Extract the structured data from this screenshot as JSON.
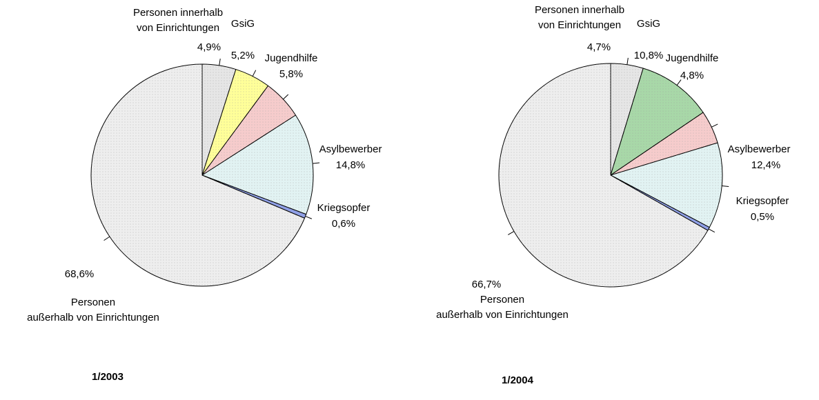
{
  "chart_data": [
    {
      "type": "pie",
      "title": "1/2003",
      "categories": [
        "Personen innerhalb\nvon Einrichtungen",
        "GsiG",
        "Jugendhilfe",
        "Asylbewerber",
        "Kriegsopfer",
        "Personen\naußerhalb von Einrichtungen"
      ],
      "values": [
        4.9,
        5.2,
        5.8,
        14.8,
        0.6,
        68.6
      ],
      "value_labels": [
        "4,9%",
        "5,2%",
        "5,8%",
        "14,8%",
        "0,6%",
        "68,6%"
      ],
      "colors": [
        "#e6e6e6",
        "#ffff99",
        "#f6cccc",
        "#e2f3f3",
        "#8fa0e8",
        "#eeeeee"
      ]
    },
    {
      "type": "pie",
      "title": "1/2004",
      "categories": [
        "Personen innerhalb\nvon Einrichtungen",
        "GsiG",
        "Jugendhilfe",
        "Asylbewerber",
        "Kriegsopfer",
        "Personen\naußerhalb von Einrichtungen"
      ],
      "values": [
        4.7,
        10.8,
        4.8,
        12.4,
        0.5,
        66.7
      ],
      "value_labels": [
        "4,7%",
        "10,8%",
        "4,8%",
        "12,4%",
        "0,5%",
        "66,7%"
      ],
      "colors": [
        "#e6e6e6",
        "#a8d8a8",
        "#f6cccc",
        "#e2f3f3",
        "#8fa0e8",
        "#eeeeee"
      ]
    }
  ]
}
